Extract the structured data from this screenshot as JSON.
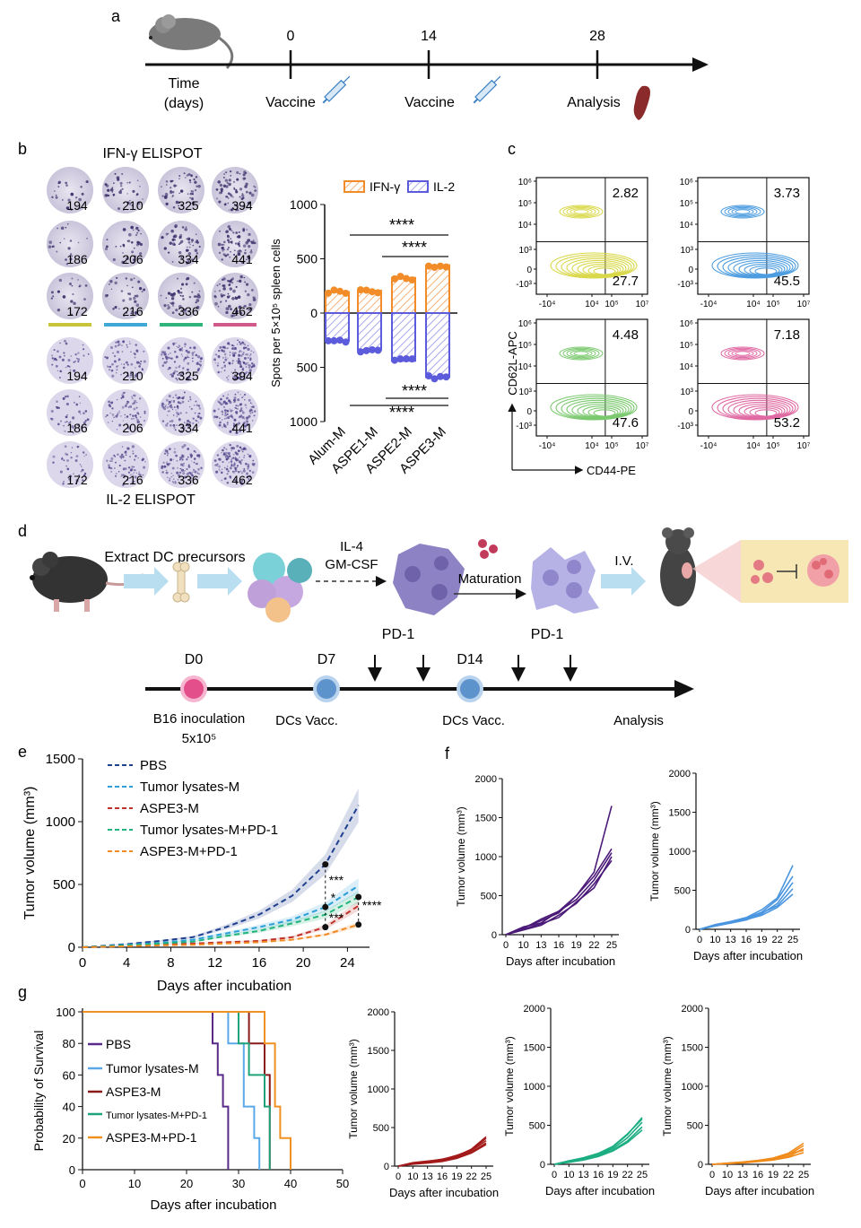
{
  "panel_labels": {
    "a": "a",
    "b": "b",
    "c": "c",
    "d": "d",
    "e": "e",
    "f": "f",
    "g": "g"
  },
  "panel_a": {
    "time_label": [
      "Time",
      "(days)"
    ],
    "ticks": [
      {
        "day": "0",
        "event": "Vaccine"
      },
      {
        "day": "14",
        "event": "Vaccine"
      },
      {
        "day": "28",
        "event": "Analysis"
      }
    ]
  },
  "panel_b": {
    "title_top": "IFN-γ  ELISPOT",
    "title_bottom": "IL-2 ELISPOT",
    "ifn_counts": [
      [
        "194",
        "210",
        "325",
        "394"
      ],
      [
        "186",
        "206",
        "334",
        "441"
      ],
      [
        "172",
        "216",
        "336",
        "462"
      ]
    ],
    "il2_counts": [
      [
        "194",
        "210",
        "325",
        "394"
      ],
      [
        "186",
        "206",
        "334",
        "441"
      ],
      [
        "172",
        "216",
        "336",
        "462"
      ]
    ],
    "group_colors": [
      "#c8c43a",
      "#3fa7d6",
      "#2fb37a",
      "#d05b8a"
    ],
    "sig": [
      "****",
      "****",
      "****",
      "****"
    ]
  },
  "panel_c": {
    "y_label": "CD62L-APC",
    "x_label": "CD44-PE",
    "y_ticks": [
      "10⁶",
      "10⁵",
      "10⁴",
      "10³",
      "0",
      "-10³"
    ],
    "x_ticks": [
      "-10⁴",
      "10⁴",
      "10⁵",
      "10⁷"
    ],
    "plots": [
      {
        "color": "#d9d84a",
        "upper": "2.82",
        "lower": "27.7"
      },
      {
        "color": "#4d9de0",
        "upper": "3.73",
        "lower": "45.5"
      },
      {
        "color": "#7bc96f",
        "upper": "4.48",
        "lower": "47.6"
      },
      {
        "color": "#e06aa3",
        "upper": "7.18",
        "lower": "53.2"
      }
    ]
  },
  "panel_d": {
    "extract": "Extract DC precursors",
    "cytokines": [
      "IL-4",
      "GM-CSF"
    ],
    "maturation": "Maturation",
    "iv": "I.V.",
    "pd1": [
      "PD-1",
      "PD-1"
    ],
    "timeline": [
      {
        "day": "D0",
        "label": "B16 inoculation",
        "sub": "5x10⁵"
      },
      {
        "day": "D7",
        "label": "DCs Vacc."
      },
      {
        "day": "D14",
        "label": "DCs Vacc."
      }
    ],
    "analysis": "Analysis"
  },
  "chart_data": [
    {
      "id": "b",
      "type": "bar",
      "ylabel": "Spots per 5×10⁵ spleen cells",
      "categories": [
        "Alum-M",
        "ASPE1-M",
        "ASPE2-M",
        "ASPE3-M"
      ],
      "y_ticks": [
        "1000",
        "500",
        "0",
        "500",
        "1000"
      ],
      "series": [
        {
          "name": "IFN-γ",
          "color": "#f28c28",
          "values": [
            194,
            206,
            325,
            441
          ]
        },
        {
          "name": "IL-2",
          "color": "#5b5bdb",
          "values": [
            -255,
            -340,
            -440,
            -590
          ]
        }
      ],
      "ylim": [
        -1000,
        1000
      ]
    },
    {
      "id": "e",
      "type": "line",
      "title": "",
      "xlabel": "Days after incubation",
      "ylabel": "Tumor volume (mm³)",
      "xlim": [
        0,
        26
      ],
      "ylim": [
        0,
        1500
      ],
      "x_ticks": [
        0,
        4,
        8,
        12,
        16,
        20,
        24
      ],
      "y_ticks": [
        0,
        500,
        1000,
        1500
      ],
      "x": [
        0,
        4,
        7,
        10,
        13,
        16,
        19,
        22,
        25
      ],
      "series": [
        {
          "name": "PBS",
          "color": "#1f3f8f",
          "values": [
            0,
            25,
            50,
            80,
            160,
            260,
            410,
            660,
            1130
          ]
        },
        {
          "name": "Tumor lysates-M",
          "color": "#2a9fd8",
          "values": [
            0,
            20,
            35,
            60,
            110,
            160,
            220,
            320,
            490
          ]
        },
        {
          "name": "ASPE3-M",
          "color": "#c0332b",
          "values": [
            0,
            10,
            20,
            30,
            40,
            50,
            80,
            160,
            330
          ]
        },
        {
          "name": "Tumor lysates-M+PD-1",
          "color": "#20b37c",
          "values": [
            0,
            15,
            30,
            45,
            90,
            130,
            190,
            260,
            400
          ]
        },
        {
          "name": "ASPE3-M+PD-1",
          "color": "#f08a24",
          "values": [
            0,
            8,
            15,
            20,
            30,
            40,
            60,
            100,
            180
          ]
        }
      ],
      "sig": [
        "***",
        "*",
        "***",
        "****"
      ]
    },
    {
      "id": "f1",
      "type": "line",
      "xlabel": "Days after incubation",
      "ylabel": "Tumor volume (mm³)",
      "ylim": [
        0,
        2000
      ],
      "x_ticks": [
        "0",
        "10",
        "13",
        "16",
        "19",
        "22",
        "25"
      ],
      "y_ticks": [
        "0",
        "500",
        "1000",
        "1500",
        "2000"
      ],
      "color": "#4b1a78",
      "x": [
        0,
        10,
        13,
        16,
        19,
        22,
        25
      ],
      "series": [
        [
          0,
          100,
          150,
          300,
          500,
          800,
          1650
        ],
        [
          0,
          80,
          200,
          300,
          450,
          700,
          1050
        ],
        [
          0,
          60,
          120,
          250,
          400,
          650,
          950
        ],
        [
          0,
          90,
          180,
          280,
          500,
          750,
          1100
        ],
        [
          0,
          70,
          140,
          220,
          420,
          600,
          1000
        ]
      ]
    },
    {
      "id": "f2",
      "type": "line",
      "xlabel": "Days after incubation",
      "ylabel": "Tumor volume (mm³)",
      "ylim": [
        0,
        2000
      ],
      "x_ticks": [
        "0",
        "10",
        "13",
        "16",
        "19",
        "22",
        "25"
      ],
      "y_ticks": [
        "0",
        "500",
        "1000",
        "1500",
        "2000"
      ],
      "color": "#4a95e0",
      "x": [
        0,
        10,
        13,
        16,
        19,
        22,
        25
      ],
      "series": [
        [
          0,
          60,
          100,
          150,
          250,
          400,
          820
        ],
        [
          0,
          50,
          90,
          140,
          220,
          380,
          680
        ],
        [
          0,
          40,
          80,
          120,
          200,
          330,
          600
        ],
        [
          0,
          55,
          95,
          135,
          210,
          300,
          520
        ],
        [
          0,
          45,
          85,
          125,
          180,
          280,
          450
        ]
      ]
    },
    {
      "id": "g",
      "type": "line",
      "xlabel": "Days after incubation",
      "ylabel": "Probability of Survival",
      "xlim": [
        0,
        50
      ],
      "ylim": [
        0,
        100
      ],
      "x_ticks": [
        0,
        10,
        20,
        30,
        40,
        50
      ],
      "y_ticks": [
        0,
        20,
        40,
        60,
        80,
        100
      ],
      "series": [
        {
          "name": "PBS",
          "color": "#5a2a8a",
          "steps": [
            [
              0,
              100
            ],
            [
              25,
              100
            ],
            [
              25,
              80
            ],
            [
              26,
              80
            ],
            [
              26,
              60
            ],
            [
              27,
              60
            ],
            [
              27,
              40
            ],
            [
              28,
              40
            ],
            [
              28,
              20
            ],
            [
              28,
              0
            ]
          ]
        },
        {
          "name": "Tumor lysates-M",
          "color": "#5aa8e8",
          "steps": [
            [
              0,
              100
            ],
            [
              28,
              100
            ],
            [
              28,
              80
            ],
            [
              31,
              80
            ],
            [
              31,
              40
            ],
            [
              33,
              40
            ],
            [
              33,
              20
            ],
            [
              34,
              20
            ],
            [
              34,
              0
            ]
          ]
        },
        {
          "name": "ASPE3-M",
          "color": "#8a1a1a",
          "steps": [
            [
              0,
              100
            ],
            [
              32,
              100
            ],
            [
              32,
              80
            ],
            [
              35,
              80
            ],
            [
              35,
              60
            ],
            [
              36,
              60
            ],
            [
              36,
              0
            ]
          ]
        },
        {
          "name": "Tumor lysates-M+PD-1",
          "color": "#1ea37a",
          "steps": [
            [
              0,
              100
            ],
            [
              30,
              100
            ],
            [
              30,
              80
            ],
            [
              32,
              80
            ],
            [
              32,
              60
            ],
            [
              35,
              60
            ],
            [
              35,
              40
            ],
            [
              36,
              40
            ],
            [
              36,
              0
            ]
          ]
        },
        {
          "name": "ASPE3-M+PD-1",
          "color": "#f09020",
          "steps": [
            [
              0,
              100
            ],
            [
              35,
              100
            ],
            [
              35,
              80
            ],
            [
              37,
              80
            ],
            [
              37,
              40
            ],
            [
              38,
              40
            ],
            [
              38,
              20
            ],
            [
              40,
              20
            ],
            [
              40,
              0
            ]
          ]
        }
      ]
    },
    {
      "id": "g1",
      "type": "line",
      "xlabel": "Days after incubation",
      "ylabel": "Tumor volume (mm³)",
      "ylim": [
        0,
        2000
      ],
      "x_ticks": [
        "0",
        "10",
        "13",
        "16",
        "19",
        "22",
        "25"
      ],
      "y_ticks": [
        "0",
        "500",
        "1000",
        "1500",
        "2000"
      ],
      "color": "#a31a1a",
      "x": [
        0,
        10,
        13,
        16,
        19,
        22,
        25
      ],
      "series": [
        [
          0,
          40,
          60,
          90,
          130,
          220,
          380
        ],
        [
          0,
          35,
          55,
          80,
          120,
          200,
          330
        ],
        [
          0,
          30,
          45,
          70,
          110,
          180,
          300
        ],
        [
          0,
          45,
          65,
          85,
          140,
          210,
          360
        ],
        [
          0,
          25,
          40,
          60,
          100,
          170,
          280
        ]
      ]
    },
    {
      "id": "g2",
      "type": "line",
      "xlabel": "Days after incubation",
      "ylabel": "Tumor volume (mm³)",
      "ylim": [
        0,
        2000
      ],
      "x_ticks": [
        "0",
        "10",
        "13",
        "16",
        "19",
        "22",
        "25"
      ],
      "y_ticks": [
        "0",
        "500",
        "1000",
        "1500",
        "2000"
      ],
      "color": "#1cae82",
      "x": [
        0,
        10,
        13,
        16,
        19,
        22,
        25
      ],
      "series": [
        [
          0,
          40,
          80,
          130,
          220,
          380,
          600
        ],
        [
          0,
          35,
          70,
          120,
          200,
          340,
          540
        ],
        [
          0,
          30,
          60,
          110,
          180,
          300,
          480
        ],
        [
          0,
          45,
          85,
          140,
          230,
          390,
          580
        ],
        [
          0,
          25,
          55,
          100,
          170,
          280,
          440
        ]
      ]
    },
    {
      "id": "g3",
      "type": "line",
      "xlabel": "Days after incubation",
      "ylabel": "Tumor volume (mm³)",
      "ylim": [
        0,
        2000
      ],
      "x_ticks": [
        "0",
        "10",
        "13",
        "16",
        "19",
        "22",
        "25"
      ],
      "y_ticks": [
        "0",
        "500",
        "1000",
        "1500",
        "2000"
      ],
      "color": "#f08a18",
      "x": [
        0,
        10,
        13,
        16,
        19,
        22,
        25
      ],
      "series": [
        [
          0,
          15,
          30,
          50,
          80,
          140,
          270
        ],
        [
          0,
          12,
          25,
          45,
          70,
          120,
          240
        ],
        [
          0,
          10,
          20,
          40,
          60,
          100,
          200
        ],
        [
          0,
          14,
          28,
          48,
          75,
          130,
          180
        ],
        [
          0,
          8,
          18,
          35,
          55,
          90,
          150
        ]
      ]
    }
  ]
}
